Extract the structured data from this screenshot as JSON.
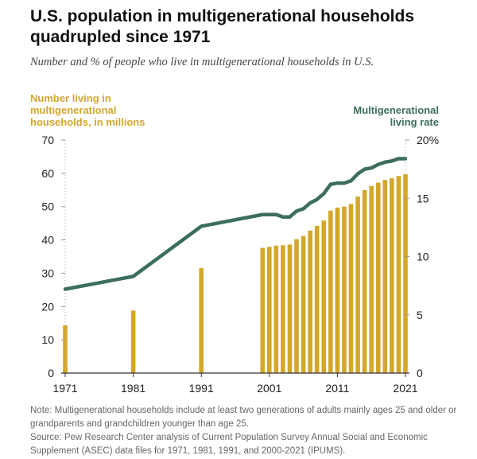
{
  "title": "U.S. population in multigenerational households quadrupled since 1971",
  "subtitle": "Number and % of people who live in multigenerational households in U.S.",
  "note": "Note: Multigenerational households include at least two generations of adults mainly ages 25 and older or grandparents and grandchildren younger than age 25.",
  "source": "Source: Pew Research Center analysis of Current Population Survey Annual Social and Economic Supplement (ASEC) data files for 1971, 1981, 1991, and 2000-2021 (IPUMS).",
  "colors": {
    "bars": "#D4A72C",
    "line": "#3C6E5E",
    "axis_text": "#222222",
    "grid": "#BBBBBB",
    "note_text": "#666666"
  },
  "chart_data": {
    "type": "bar+line",
    "x_ticks": [
      "1971",
      "1981",
      "1991",
      "2001",
      "2011",
      "2021"
    ],
    "xlim": [
      1971,
      2021
    ],
    "left_axis": {
      "label": [
        "Number living in",
        "multigenerational",
        "households, in millions"
      ],
      "ticks": [
        "0",
        "10",
        "20",
        "30",
        "40",
        "50",
        "60",
        "70"
      ],
      "ylim": [
        0,
        70
      ]
    },
    "right_axis": {
      "label": [
        "Multigenerational",
        "living rate"
      ],
      "ticks": [
        "0",
        "5",
        "10",
        "15",
        "20%"
      ],
      "ylim": [
        0,
        20
      ]
    },
    "series": [
      {
        "name": "Number living in multigenerational households, in millions",
        "kind": "bar",
        "axis": "left",
        "x": [
          1971,
          1981,
          1991,
          2000,
          2001,
          2002,
          2003,
          2004,
          2005,
          2006,
          2007,
          2008,
          2009,
          2010,
          2011,
          2012,
          2013,
          2014,
          2015,
          2016,
          2017,
          2018,
          2019,
          2020,
          2021
        ],
        "values": [
          14.3,
          18.8,
          31.5,
          37.6,
          37.9,
          38.3,
          38.4,
          38.6,
          40.2,
          41.2,
          42.8,
          44.2,
          45.8,
          48.8,
          49.7,
          50.0,
          50.8,
          53.0,
          55.0,
          56.2,
          57.2,
          58.0,
          58.5,
          59.2,
          59.7
        ]
      },
      {
        "name": "Multigenerational living rate",
        "kind": "line",
        "axis": "right",
        "x": [
          1971,
          1981,
          1991,
          2000,
          2001,
          2002,
          2003,
          2004,
          2005,
          2006,
          2007,
          2008,
          2009,
          2010,
          2011,
          2012,
          2013,
          2014,
          2015,
          2016,
          2017,
          2018,
          2019,
          2020,
          2021
        ],
        "values": [
          7.2,
          8.3,
          12.6,
          13.6,
          13.6,
          13.6,
          13.4,
          13.4,
          13.9,
          14.1,
          14.6,
          14.9,
          15.4,
          16.2,
          16.3,
          16.3,
          16.5,
          17.1,
          17.5,
          17.6,
          17.9,
          18.1,
          18.2,
          18.4,
          18.4
        ]
      }
    ]
  }
}
